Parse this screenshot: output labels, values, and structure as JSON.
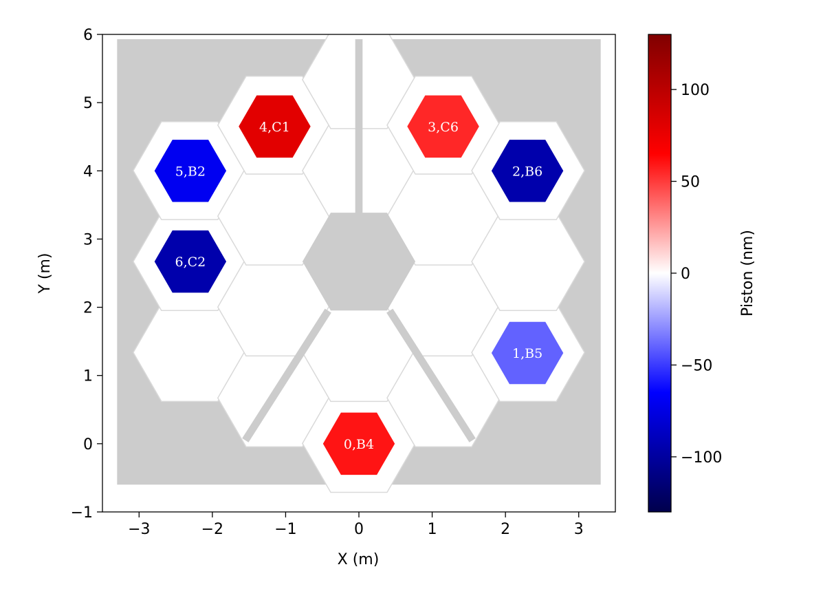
{
  "chart_data": {
    "type": "heatmap",
    "title": "",
    "xlabel": "X (m)",
    "ylabel": "Y (m)",
    "xlim": [
      -3.5,
      3.5
    ],
    "ylim": [
      -1,
      6
    ],
    "xticks": [
      -3,
      -2,
      -1,
      0,
      1,
      2,
      3
    ],
    "xtick_labels": [
      "−3",
      "−2",
      "−1",
      "0",
      "1",
      "2",
      "3"
    ],
    "yticks": [
      -1,
      0,
      1,
      2,
      3,
      4,
      5,
      6
    ],
    "ytick_labels": [
      "−1",
      "0",
      "1",
      "2",
      "3",
      "4",
      "5",
      "6"
    ],
    "grid": false,
    "colorbar": {
      "label": "Piston (nm)",
      "colormap": "seismic",
      "range": [
        -130,
        130
      ],
      "ticks": [
        -100,
        -50,
        0,
        50,
        100
      ],
      "tick_labels": [
        "−100",
        "−50",
        "0",
        "50",
        "100"
      ]
    },
    "segments": [
      {
        "label": "0,B4",
        "x": 0.0,
        "y": 0.0,
        "piston_nm": 60
      },
      {
        "label": "1,B5",
        "x": 2.3,
        "y": 1.33,
        "piston_nm": -40
      },
      {
        "label": "2,B6",
        "x": 2.3,
        "y": 4.0,
        "piston_nm": -95
      },
      {
        "label": "3,C6",
        "x": 1.15,
        "y": 4.65,
        "piston_nm": 55
      },
      {
        "label": "4,C1",
        "x": -1.15,
        "y": 4.65,
        "piston_nm": 80
      },
      {
        "label": "5,B2",
        "x": -2.3,
        "y": 4.0,
        "piston_nm": -70
      },
      {
        "label": "6,C2",
        "x": -2.3,
        "y": 2.67,
        "piston_nm": -95
      }
    ],
    "colors": {
      "background": "#cccccc",
      "mirror": "#ffffff",
      "segment_edge": "#d9d9d9"
    }
  }
}
